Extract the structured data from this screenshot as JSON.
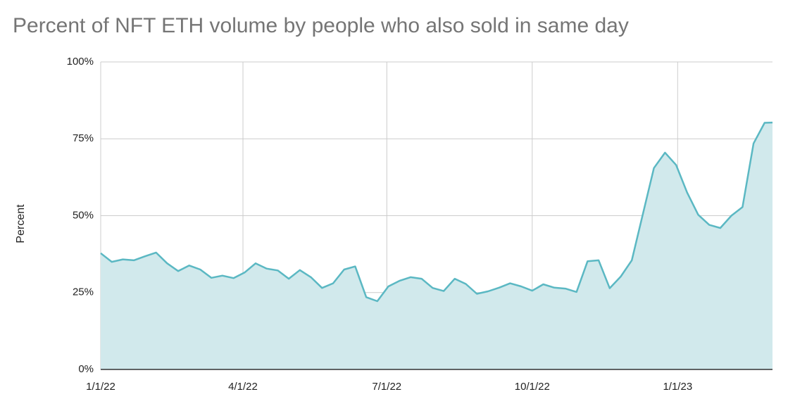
{
  "chart_data": {
    "type": "area",
    "title": "Percent of NFT ETH volume by people who also sold in same day",
    "y_label": "Percent",
    "x": [
      "1/1/22",
      "1/8/22",
      "1/15/22",
      "1/22/22",
      "1/29/22",
      "2/5/22",
      "2/12/22",
      "2/19/22",
      "2/26/22",
      "3/5/22",
      "3/12/22",
      "3/19/22",
      "3/26/22",
      "4/2/22",
      "4/9/22",
      "4/16/22",
      "4/23/22",
      "4/30/22",
      "5/7/22",
      "5/14/22",
      "5/21/22",
      "5/28/22",
      "6/4/22",
      "6/11/22",
      "6/18/22",
      "6/25/22",
      "7/2/22",
      "7/9/22",
      "7/16/22",
      "7/23/22",
      "7/30/22",
      "8/6/22",
      "8/13/22",
      "8/20/22",
      "8/27/22",
      "9/3/22",
      "9/10/22",
      "9/17/22",
      "9/24/22",
      "10/1/22",
      "10/8/22",
      "10/15/22",
      "10/22/22",
      "10/29/22",
      "11/5/22",
      "11/12/22",
      "11/19/22",
      "11/26/22",
      "12/3/22",
      "12/10/22",
      "12/17/22",
      "12/24/22",
      "12/31/22",
      "1/7/23",
      "1/14/23",
      "1/21/23",
      "1/28/23",
      "2/4/23",
      "2/11/23",
      "2/18/23",
      "2/25/23",
      "3/2/23"
    ],
    "values": [
      37.8,
      35,
      35.8,
      35.5,
      36.8,
      38,
      34.5,
      32,
      33.8,
      32.5,
      29.8,
      30.5,
      29.7,
      31.5,
      34.5,
      32.8,
      32.2,
      29.5,
      32.3,
      30,
      26.5,
      28,
      32.5,
      33.5,
      23.5,
      22.2,
      27,
      28.8,
      30,
      29.5,
      26.5,
      25.5,
      29.5,
      27.8,
      24.6,
      25.4,
      26.6,
      28,
      27,
      25.6,
      27.7,
      26.6,
      26.3,
      25.2,
      35.2,
      35.5,
      26.4,
      30.2,
      35.5,
      50.5,
      65.5,
      70.5,
      66.5,
      57.5,
      50.3,
      47,
      46,
      50,
      52.8,
      73.5,
      80.2,
      80.3
    ],
    "color": "#5bb8c3",
    "fill_color": "#d1e9ec",
    "xlim": [
      "1/1/22",
      "3/2/23"
    ],
    "xticks": [
      "1/1/22",
      "4/1/22",
      "7/1/22",
      "10/1/22",
      "1/1/23"
    ],
    "ylim": [
      0,
      100
    ],
    "yticks": [
      {
        "value": 0,
        "label": "0%"
      },
      {
        "value": 25,
        "label": "25%"
      },
      {
        "value": 50,
        "label": "50%"
      },
      {
        "value": 75,
        "label": "75%"
      },
      {
        "value": 100,
        "label": "100%"
      }
    ],
    "grid": true
  }
}
